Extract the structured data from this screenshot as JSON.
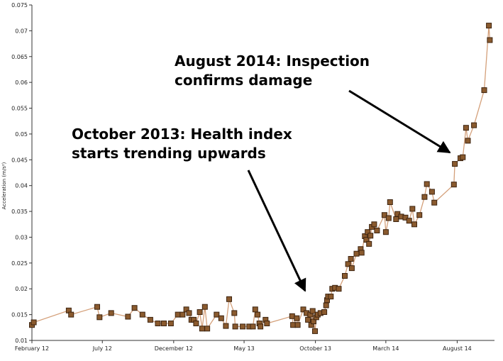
{
  "chart_data": {
    "type": "line",
    "title": "",
    "xlabel": "",
    "ylabel": "Acceleration (m/s²)",
    "ylim": [
      0.01,
      0.075
    ],
    "y_ticks": [
      0.01,
      0.015,
      0.02,
      0.025,
      0.03,
      0.035,
      0.04,
      0.045,
      0.05,
      0.055,
      0.06,
      0.065,
      0.07,
      0.075
    ],
    "y_tick_labels": [
      "0.01",
      "0.015",
      "0.02",
      "0.025",
      "0.03",
      "0.035",
      "0.04",
      "0.045",
      "0.05",
      "0.055",
      "0.06",
      "0.065",
      "0.07",
      "0.075"
    ],
    "xlim": [
      "2012-02-01",
      "2014-10-20"
    ],
    "x_ticks": [
      "2012-02-01",
      "2012-07-01",
      "2012-12-01",
      "2013-05-01",
      "2013-10-01",
      "2014-03-01",
      "2014-08-01"
    ],
    "x_tick_labels": [
      "February 12",
      "July 12",
      "December 12",
      "May 13",
      "October 13",
      "March 14",
      "August 14"
    ],
    "grid": false,
    "colors": {
      "line": "#d4a07a",
      "marker_fill": "#8a5a2e",
      "marker_stroke": "#3d2410"
    },
    "series": [
      {
        "points": [
          [
            "2012-02-01",
            0.013
          ],
          [
            "2012-02-05",
            0.0135
          ],
          [
            "2012-04-20",
            0.0158
          ],
          [
            "2012-04-25",
            0.015
          ],
          [
            "2012-06-20",
            0.0165
          ],
          [
            "2012-06-25",
            0.0145
          ],
          [
            "2012-07-20",
            0.0153
          ],
          [
            "2012-08-25",
            0.0146
          ],
          [
            "2012-09-08",
            0.0163
          ],
          [
            "2012-09-25",
            0.015
          ],
          [
            "2012-10-12",
            0.014
          ],
          [
            "2012-10-28",
            0.0133
          ],
          [
            "2012-11-10",
            0.0133
          ],
          [
            "2012-11-25",
            0.0133
          ],
          [
            "2012-12-10",
            0.015
          ],
          [
            "2012-12-20",
            0.015
          ],
          [
            "2012-12-28",
            0.016
          ],
          [
            "2013-01-03",
            0.0153
          ],
          [
            "2013-01-08",
            0.014
          ],
          [
            "2013-01-13",
            0.014
          ],
          [
            "2013-01-18",
            0.0133
          ],
          [
            "2013-01-26",
            0.0155
          ],
          [
            "2013-01-31",
            0.0123
          ],
          [
            "2013-02-06",
            0.0165
          ],
          [
            "2013-02-11",
            0.0123
          ],
          [
            "2013-03-03",
            0.015
          ],
          [
            "2013-03-13",
            0.0143
          ],
          [
            "2013-03-23",
            0.0128
          ],
          [
            "2013-03-30",
            0.018
          ],
          [
            "2013-04-10",
            0.0153
          ],
          [
            "2013-04-12",
            0.0127
          ],
          [
            "2013-04-28",
            0.0127
          ],
          [
            "2013-05-12",
            0.0127
          ],
          [
            "2013-05-20",
            0.0127
          ],
          [
            "2013-05-25",
            0.016
          ],
          [
            "2013-05-30",
            0.015
          ],
          [
            "2013-06-03",
            0.0133
          ],
          [
            "2013-06-05",
            0.0127
          ],
          [
            "2013-06-16",
            0.014
          ],
          [
            "2013-06-19",
            0.0133
          ],
          [
            "2013-08-12",
            0.0147
          ],
          [
            "2013-08-14",
            0.013
          ],
          [
            "2013-08-22",
            0.0143
          ],
          [
            "2013-08-24",
            0.013
          ],
          [
            "2013-09-05",
            0.016
          ],
          [
            "2013-09-12",
            0.0153
          ],
          [
            "2013-09-15",
            0.014
          ],
          [
            "2013-09-20",
            0.015
          ],
          [
            "2013-09-22",
            0.013
          ],
          [
            "2013-09-25",
            0.0157
          ],
          [
            "2013-09-27",
            0.0137
          ],
          [
            "2013-09-30",
            0.0118
          ],
          [
            "2013-10-03",
            0.0145
          ],
          [
            "2013-10-06",
            0.015
          ],
          [
            "2013-10-12",
            0.0153
          ],
          [
            "2013-10-20",
            0.0155
          ],
          [
            "2013-10-24",
            0.0168
          ],
          [
            "2013-10-26",
            0.0178
          ],
          [
            "2013-10-28",
            0.0185
          ],
          [
            "2013-11-03",
            0.0185
          ],
          [
            "2013-11-06",
            0.02
          ],
          [
            "2013-11-12",
            0.0202
          ],
          [
            "2013-11-20",
            0.02
          ],
          [
            "2013-12-03",
            0.0225
          ],
          [
            "2013-12-10",
            0.0248
          ],
          [
            "2013-12-16",
            0.0258
          ],
          [
            "2013-12-18",
            0.024
          ],
          [
            "2013-12-28",
            0.0268
          ],
          [
            "2014-01-06",
            0.0277
          ],
          [
            "2014-01-08",
            0.027
          ],
          [
            "2014-01-15",
            0.0302
          ],
          [
            "2014-01-18",
            0.0295
          ],
          [
            "2014-01-21",
            0.031
          ],
          [
            "2014-01-24",
            0.0287
          ],
          [
            "2014-01-27",
            0.0303
          ],
          [
            "2014-01-30",
            0.032
          ],
          [
            "2014-02-04",
            0.0325
          ],
          [
            "2014-02-10",
            0.0313
          ],
          [
            "2014-02-26",
            0.0343
          ],
          [
            "2014-03-01",
            0.031
          ],
          [
            "2014-03-07",
            0.0337
          ],
          [
            "2014-03-10",
            0.0368
          ],
          [
            "2014-03-23",
            0.0335
          ],
          [
            "2014-03-26",
            0.0345
          ],
          [
            "2014-04-03",
            0.034
          ],
          [
            "2014-04-12",
            0.0338
          ],
          [
            "2014-04-20",
            0.0332
          ],
          [
            "2014-04-27",
            0.0355
          ],
          [
            "2014-05-01",
            0.0325
          ],
          [
            "2014-05-12",
            0.0343
          ],
          [
            "2014-05-23",
            0.0378
          ],
          [
            "2014-05-28",
            0.0403
          ],
          [
            "2014-06-08",
            0.0388
          ],
          [
            "2014-06-13",
            0.0367
          ],
          [
            "2014-07-25",
            0.0402
          ],
          [
            "2014-07-27",
            0.0442
          ],
          [
            "2014-08-08",
            0.0453
          ],
          [
            "2014-08-13",
            0.0455
          ],
          [
            "2014-08-20",
            0.0512
          ],
          [
            "2014-08-24",
            0.0487
          ],
          [
            "2014-09-06",
            0.0517
          ],
          [
            "2014-09-28",
            0.0585
          ],
          [
            "2014-10-08",
            0.071
          ],
          [
            "2014-10-10",
            0.0682
          ]
        ]
      }
    ],
    "annotations": [
      {
        "text_lines": [
          "August 2014: Inspection",
          "confirms damage"
        ],
        "target": [
          "2014-08-01",
          0.046
        ]
      },
      {
        "text_lines": [
          "October 2013: Health index",
          "starts trending upwards"
        ],
        "target": [
          "2013-10-01",
          0.019
        ]
      }
    ]
  }
}
